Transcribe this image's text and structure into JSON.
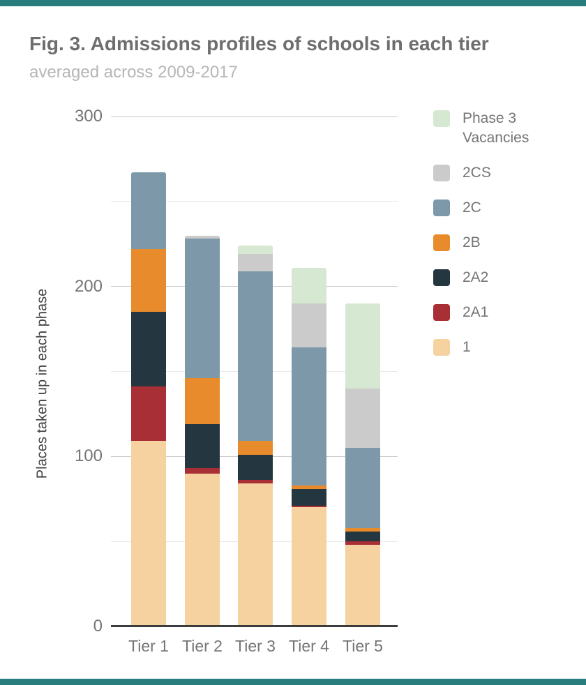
{
  "page": {
    "accent_color": "#2a7d7d",
    "title": "Fig. 3. Admissions profiles of schools in each tier",
    "subtitle": "averaged across 2009-2017"
  },
  "chart_data": {
    "type": "bar",
    "stacked": true,
    "title": "Fig. 3. Admissions profiles of schools in each tier",
    "subtitle": "averaged across 2009-2017",
    "xlabel": "",
    "ylabel": "Places taken up in each phase",
    "ylim": [
      0,
      300
    ],
    "yticks": [
      300,
      200,
      100,
      0
    ],
    "gridlines": [
      300,
      250,
      200,
      150,
      100,
      50
    ],
    "grid": true,
    "legend_position": "right",
    "categories": [
      "Tier 1",
      "Tier 2",
      "Tier 3",
      "Tier 4",
      "Tier 5"
    ],
    "series": [
      {
        "name": "1",
        "color": "#f5d2a0",
        "values": [
          109,
          90,
          84,
          70,
          48
        ]
      },
      {
        "name": "2A1",
        "color": "#a92f36",
        "values": [
          32,
          3,
          2,
          1,
          2
        ]
      },
      {
        "name": "2A2",
        "color": "#243740",
        "values": [
          44,
          26,
          15,
          10,
          6
        ]
      },
      {
        "name": "2B",
        "color": "#e88b2d",
        "values": [
          37,
          27,
          8,
          2,
          2
        ]
      },
      {
        "name": "2C",
        "color": "#7d99a9",
        "values": [
          45,
          82,
          100,
          81,
          47
        ]
      },
      {
        "name": "2CS",
        "color": "#cacbca",
        "values": [
          0,
          2,
          10,
          26,
          35
        ]
      },
      {
        "name": "Phase 3 Vacancies",
        "color": "#d7e8d2",
        "values": [
          0,
          0,
          5,
          21,
          50
        ]
      }
    ]
  },
  "legend": {
    "items": [
      {
        "label": "Phase 3 Vacancies",
        "color": "#d7e8d2"
      },
      {
        "label": "2CS",
        "color": "#cacbca"
      },
      {
        "label": "2C",
        "color": "#7d99a9"
      },
      {
        "label": "2B",
        "color": "#e88b2d"
      },
      {
        "label": "2A2",
        "color": "#243740"
      },
      {
        "label": "2A1",
        "color": "#a92f36"
      },
      {
        "label": "1",
        "color": "#f5d2a0"
      }
    ]
  }
}
